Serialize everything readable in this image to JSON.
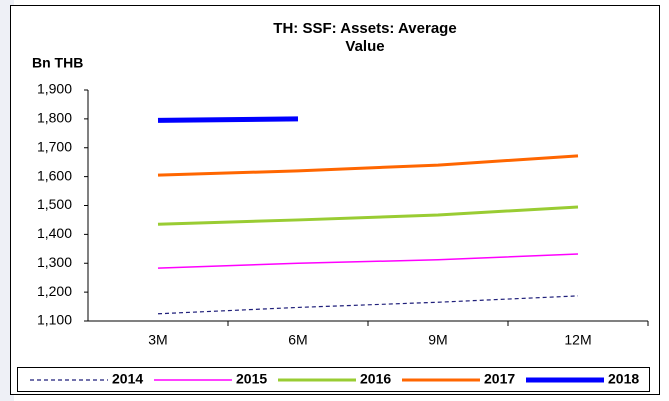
{
  "chart_data": {
    "type": "line",
    "title": "TH: SSF: Assets: Average Value",
    "y_label": "Bn THB",
    "categories": [
      "3M",
      "6M",
      "9M",
      "12M"
    ],
    "series": [
      {
        "name": "2014",
        "color": "#1f1f7a",
        "dashed": true,
        "values": [
          1125,
          1147,
          1165,
          1187
        ]
      },
      {
        "name": "2015",
        "color": "#ff00ff",
        "values": [
          1283,
          1300,
          1312,
          1332
        ]
      },
      {
        "name": "2016",
        "color": "#99cc33",
        "values": [
          1435,
          1450,
          1467,
          1495
        ]
      },
      {
        "name": "2017",
        "color": "#ff6600",
        "values": [
          1605,
          1620,
          1640,
          1672
        ]
      },
      {
        "name": "2018",
        "color": "#0000ff",
        "values": [
          1795,
          1800,
          null,
          null
        ]
      }
    ],
    "ylim": [
      1100,
      1900
    ],
    "yticks": [
      {
        "value": 1100,
        "label": "1,100"
      },
      {
        "value": 1200,
        "label": "1,200"
      },
      {
        "value": 1300,
        "label": "1,300"
      },
      {
        "value": 1400,
        "label": "1,400"
      },
      {
        "value": 1500,
        "label": "1,500"
      },
      {
        "value": 1600,
        "label": "1,600"
      },
      {
        "value": 1700,
        "label": "1,700"
      },
      {
        "value": 1800,
        "label": "1,800"
      },
      {
        "value": 1900,
        "label": "1,900"
      }
    ],
    "legend": "bottom",
    "grid": false
  }
}
